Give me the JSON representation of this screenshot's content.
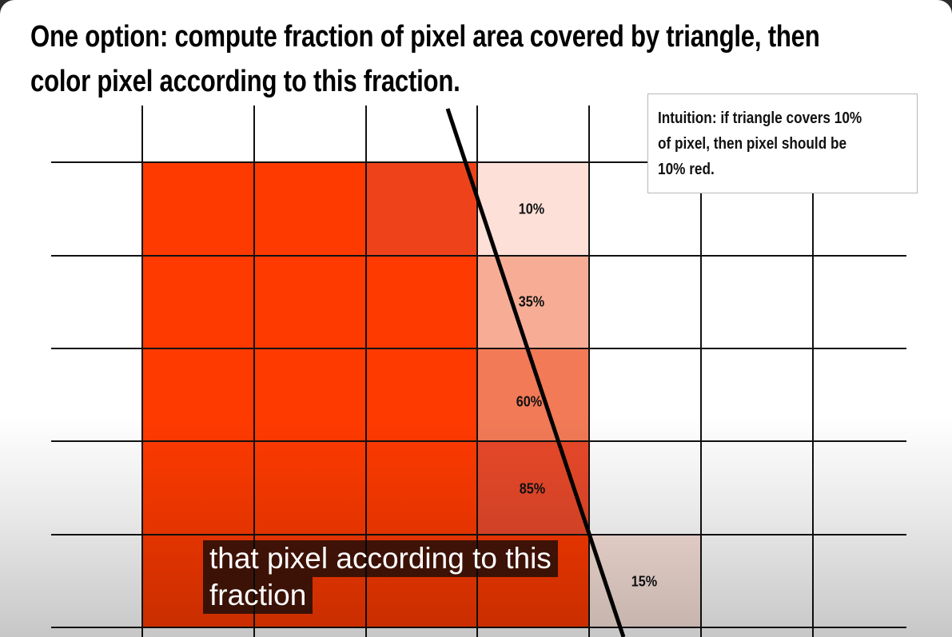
{
  "slide": {
    "title_lines": [
      "One option: compute fraction of pixel area covered by triangle, then",
      "color pixel according to this fraction."
    ],
    "callout_lines": [
      "Intuition: if triangle covers 10%",
      "of pixel, then pixel should be",
      "10% red."
    ],
    "coverage_labels": [
      "10%",
      "35%",
      "60%",
      "85%",
      "15%"
    ],
    "colors": {
      "full_red": "#ff3a00",
      "edge_red": "#ee431a",
      "coverage_10": "#fde0d8",
      "coverage_35": "#f7ad95",
      "coverage_60": "#f27a57",
      "coverage_85": "#e9492a",
      "coverage_15": "#fbe4dc",
      "grid_line": "#111111",
      "triangle_edge": "#000000"
    }
  },
  "captions": {
    "lines": [
      "that pixel according to this",
      "fraction"
    ]
  }
}
